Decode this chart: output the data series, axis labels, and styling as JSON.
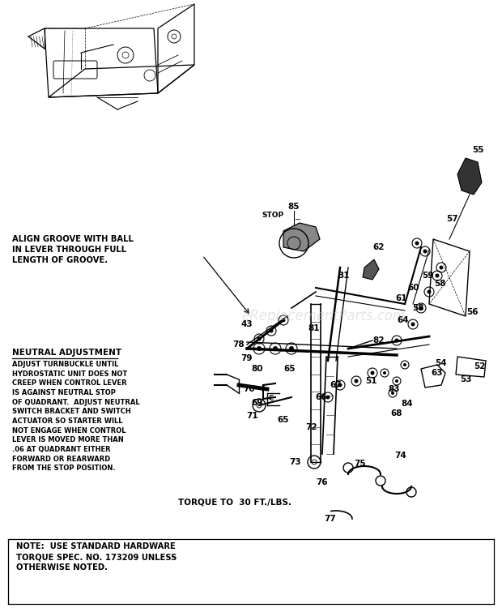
{
  "bg_color": "#ffffff",
  "watermark": "eReplacementParts.com",
  "align_note": "ALIGN GROOVE WITH BALL\nIN LEVER THROUGH FULL\nLENGTH OF GROOVE.",
  "neutral_header": "NEUTRAL ADJUSTMENT",
  "neutral_text": "ADJUST TURNBUCKLE UNTIL\nHYDROSTATIC UNIT DOES NOT\nCREEP WHEN CONTROL LEVER\nIS AGAINST NEUTRAL STOP\nOF QUADRANT.  ADJUST NEUTRAL\nSWITCH BRACKET AND SWITCH\nACTUATOR SO STARTER WILL\nNOT ENGAGE WHEN CONTROL\nLEVER IS MOVED MORE THAN\n.06 AT QUADRANT EITHER\nFORWARD OR REARWARD\nFROM THE STOP POSITION.",
  "torque_note": "TORQUE TO  30 FT./LBS.",
  "bottom_note": "NOTE:  USE STANDARD HARDWARE\nTORQUE SPEC. NO. 173209 UNLESS\nOTHERWISE NOTED.",
  "stop_label": "STOP"
}
